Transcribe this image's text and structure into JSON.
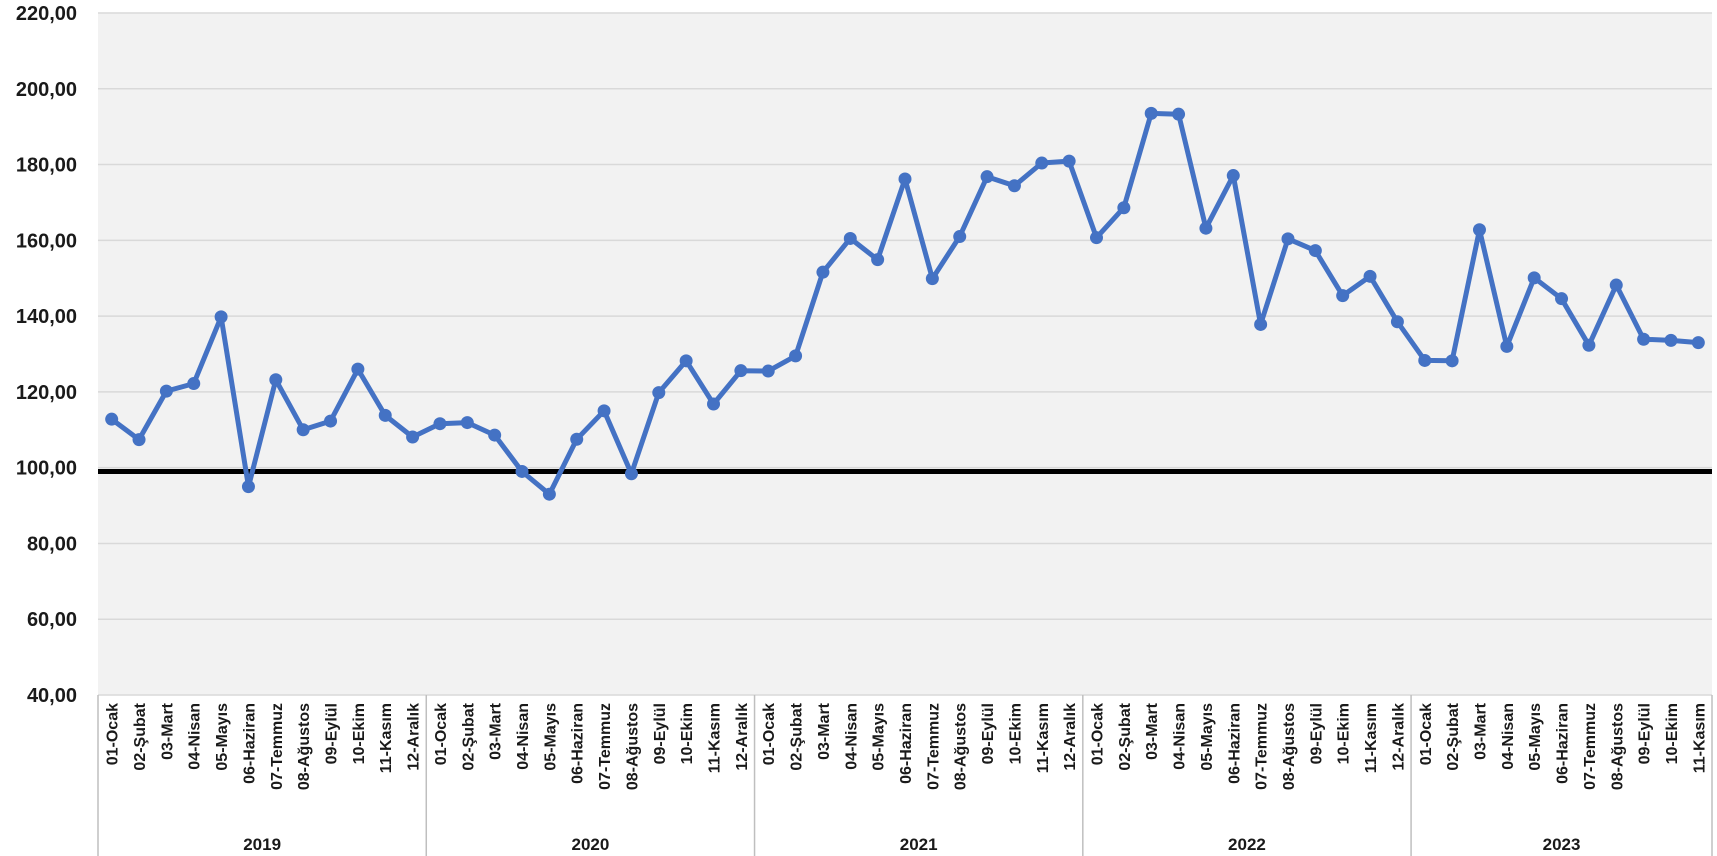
{
  "chart_data": {
    "type": "line",
    "title": "",
    "xlabel": "",
    "ylabel": "",
    "ylim": [
      40,
      220
    ],
    "yticks": [
      "40,00",
      "60,00",
      "80,00",
      "100,00",
      "120,00",
      "140,00",
      "160,00",
      "180,00",
      "200,00",
      "220,00"
    ],
    "grid": true,
    "reference_line": 99,
    "colors": {
      "series": "#4472c4",
      "reference": "#000000",
      "plot_background": "#f2f2f2",
      "grid": "#d9d9d9"
    },
    "groups": [
      {
        "year": "2019",
        "months": [
          "01-Ocak",
          "02-Şubat",
          "03-Mart",
          "04-Nisan",
          "05-Mayıs",
          "06-Haziran",
          "07-Temmuz",
          "08-Ağustos",
          "09-Eylül",
          "10-Ekim",
          "11-Kasım",
          "12-Aralık"
        ]
      },
      {
        "year": "2020",
        "months": [
          "01-Ocak",
          "02-Şubat",
          "03-Mart",
          "04-Nisan",
          "05-Mayıs",
          "06-Haziran",
          "07-Temmuz",
          "08-Ağustos",
          "09-Eylül",
          "10-Ekim",
          "11-Kasım",
          "12-Aralık"
        ]
      },
      {
        "year": "2021",
        "months": [
          "01-Ocak",
          "02-Şubat",
          "03-Mart",
          "04-Nisan",
          "05-Mayıs",
          "06-Haziran",
          "07-Temmuz",
          "08-Ağustos",
          "09-Eylül",
          "10-Ekim",
          "11-Kasım",
          "12-Aralık"
        ]
      },
      {
        "year": "2022",
        "months": [
          "01-Ocak",
          "02-Şubat",
          "03-Mart",
          "04-Nisan",
          "05-Mayıs",
          "06-Haziran",
          "07-Temmuz",
          "08-Ağustos",
          "09-Eylül",
          "10-Ekim",
          "11-Kasım",
          "12-Aralık"
        ]
      },
      {
        "year": "2023",
        "months": [
          "01-Ocak",
          "02-Şubat",
          "03-Mart",
          "04-Nisan",
          "05-Mayıs",
          "06-Haziran",
          "07-Temmuz",
          "08-Ağustos",
          "09-Eylül",
          "10-Ekim",
          "11-Kasım"
        ]
      }
    ],
    "series": [
      {
        "values": [
          112.8,
          107.4,
          120.2,
          122.2,
          139.8,
          95.0,
          123.2,
          110.0,
          112.3,
          126.0,
          113.8,
          108.1,
          111.6,
          111.9,
          108.6,
          99.0,
          93.0,
          107.5,
          115.0,
          98.4,
          119.8,
          128.2,
          116.8,
          125.6,
          125.5,
          129.5,
          151.6,
          160.5,
          154.9,
          176.2,
          149.9,
          161.0,
          176.8,
          174.4,
          180.4,
          180.9,
          160.7,
          168.6,
          193.5,
          193.3,
          163.2,
          177.1,
          137.8,
          160.4,
          157.3,
          145.4,
          150.5,
          138.5,
          128.3,
          128.2,
          162.8,
          132.0,
          150.1,
          144.6,
          132.3,
          148.2,
          133.9,
          133.6,
          133.0
        ]
      }
    ]
  }
}
